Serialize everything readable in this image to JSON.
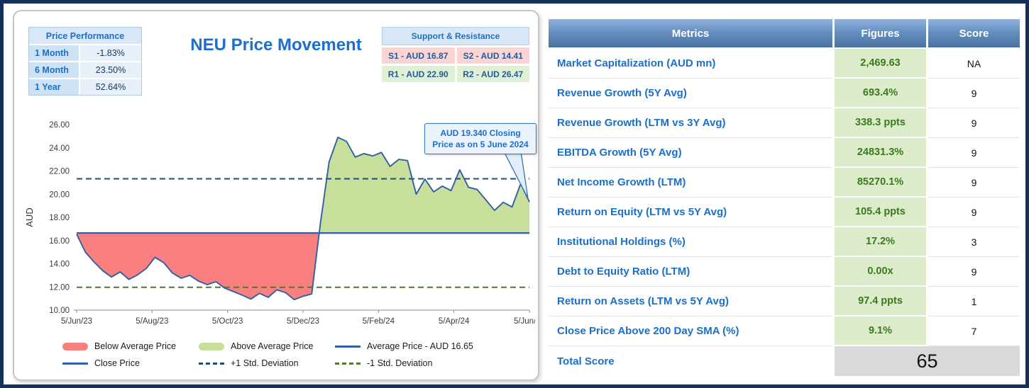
{
  "chart_panel": {
    "title": "NEU Price Movement",
    "price_performance": {
      "header": "Price Performance",
      "rows": [
        {
          "label": "1 Month",
          "value": "-1.83%"
        },
        {
          "label": "6 Month",
          "value": "23.50%"
        },
        {
          "label": "1 Year",
          "value": "52.64%"
        }
      ]
    },
    "support_resistance": {
      "header": "Support & Resistance",
      "s1": "S1 - AUD 16.87",
      "s2": "S2 - AUD 14.41",
      "r1": "R1 - AUD 22.90",
      "r2": "R2 - AUD 26.47"
    },
    "annotation": {
      "line1": "AUD 19.340 Closing",
      "line2": "Price as on 5 June 2024"
    },
    "legend": {
      "below": "Below Average Price",
      "above": "Above Average Price",
      "average": "Average Price - AUD 16.65",
      "close": "Close Price",
      "plus_sd": "+1 Std. Deviation",
      "minus_sd": "-1 Std. Deviation"
    }
  },
  "chart_data": {
    "type": "line",
    "title": "NEU Price Movement",
    "ylabel": "AUD",
    "ylim": [
      10,
      26
    ],
    "ytick_values": [
      26,
      24,
      22,
      20,
      18,
      16,
      14,
      12,
      10
    ],
    "yticks": [
      "26.00",
      "24.00",
      "22.00",
      "20.00",
      "18.00",
      "16.00",
      "14.00",
      "12.00",
      "10.00"
    ],
    "xticks": [
      "5/Jun/23",
      "5/Aug/23",
      "5/Oct/23",
      "5/Dec/23",
      "5/Feb/24",
      "5/Apr/24",
      "5/Jun/24"
    ],
    "grid": false,
    "legend_position": "bottom",
    "average_price": 16.65,
    "plus1_sd": 21.33,
    "minus1_sd": 11.97,
    "last_close": 19.34,
    "close_series": [
      16.55,
      15.0,
      14.15,
      13.4,
      12.85,
      13.3,
      12.65,
      13.05,
      13.6,
      14.55,
      14.1,
      13.2,
      12.75,
      13.0,
      12.5,
      12.2,
      12.45,
      11.9,
      11.6,
      11.3,
      10.95,
      11.45,
      11.1,
      11.75,
      11.5,
      10.9,
      11.2,
      11.4,
      17.5,
      22.8,
      24.9,
      24.55,
      23.2,
      23.5,
      23.3,
      23.6,
      22.4,
      23.0,
      22.9,
      20.0,
      21.3,
      20.2,
      20.7,
      20.3,
      22.1,
      20.6,
      20.4,
      19.5,
      18.6,
      19.3,
      18.9,
      20.9,
      19.34
    ],
    "colors": {
      "close_line": "#2F5FA5",
      "average_line": "#2F5FA5",
      "plus_sd_line": "#1F4E79",
      "minus_sd_line": "#4F7A28",
      "below_fill": "#F9807E",
      "above_fill": "#C8DF9B"
    }
  },
  "metrics_table": {
    "headers": [
      "Metrics",
      "Figures",
      "Score"
    ],
    "rows": [
      {
        "metric": "Market Capitalization (AUD mn)",
        "figure": "2,469.63",
        "score": "NA"
      },
      {
        "metric": "Revenue Growth (5Y Avg)",
        "figure": "693.4%",
        "score": "9"
      },
      {
        "metric": "Revenue Growth (LTM vs 3Y Avg)",
        "figure": "338.3 ppts",
        "score": "9"
      },
      {
        "metric": "EBITDA Growth (5Y Avg)",
        "figure": "24831.3%",
        "score": "9"
      },
      {
        "metric": "Net Income Growth (LTM)",
        "figure": "85270.1%",
        "score": "9"
      },
      {
        "metric": "Return on Equity (LTM vs 5Y Avg)",
        "figure": "105.4 ppts",
        "score": "9"
      },
      {
        "metric": "Institutional Holdings (%)",
        "figure": "17.2%",
        "score": "3"
      },
      {
        "metric": "Debt to Equity Ratio (LTM)",
        "figure": "0.00x",
        "score": "9"
      },
      {
        "metric": "Return on Assets (LTM vs 5Y Avg)",
        "figure": "97.4 ppts",
        "score": "1"
      },
      {
        "metric": "Close Price Above 200 Day SMA (%)",
        "figure": "9.1%",
        "score": "7"
      }
    ],
    "total": {
      "label": "Total Score",
      "value": "65"
    }
  }
}
